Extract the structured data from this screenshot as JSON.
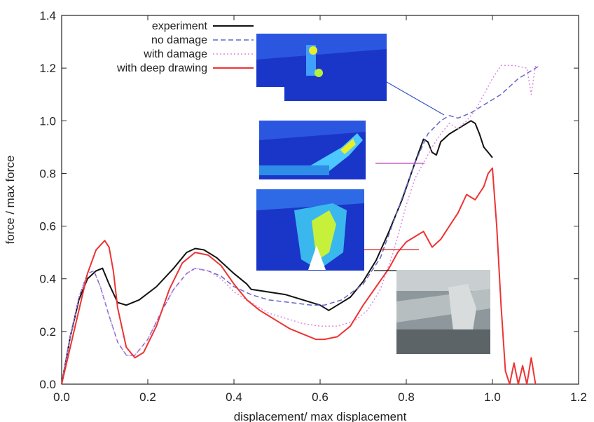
{
  "chart_data": {
    "type": "line",
    "title": "",
    "xlabel": "displacement/ max displacement",
    "ylabel": "force / max force",
    "xlim": [
      0.0,
      1.2
    ],
    "ylim": [
      0.0,
      1.4
    ],
    "xticks": [
      "0.0",
      "0.2",
      "0.4",
      "0.6",
      "0.8",
      "1.0",
      "1.2"
    ],
    "yticks": [
      "0.0",
      "0.2",
      "0.4",
      "0.6",
      "0.8",
      "1.0",
      "1.2",
      "1.4"
    ],
    "grid": false,
    "legend_position": "top-left",
    "series": [
      {
        "name": "experiment",
        "color": "#111111",
        "dash": "solid",
        "points": [
          [
            0.0,
            0.0
          ],
          [
            0.02,
            0.18
          ],
          [
            0.04,
            0.32
          ],
          [
            0.06,
            0.4
          ],
          [
            0.08,
            0.43
          ],
          [
            0.095,
            0.44
          ],
          [
            0.11,
            0.38
          ],
          [
            0.13,
            0.31
          ],
          [
            0.15,
            0.3
          ],
          [
            0.18,
            0.32
          ],
          [
            0.22,
            0.37
          ],
          [
            0.26,
            0.44
          ],
          [
            0.29,
            0.5
          ],
          [
            0.31,
            0.515
          ],
          [
            0.33,
            0.51
          ],
          [
            0.36,
            0.48
          ],
          [
            0.4,
            0.42
          ],
          [
            0.43,
            0.38
          ],
          [
            0.44,
            0.36
          ],
          [
            0.48,
            0.35
          ],
          [
            0.52,
            0.34
          ],
          [
            0.56,
            0.32
          ],
          [
            0.6,
            0.3
          ],
          [
            0.62,
            0.28
          ],
          [
            0.64,
            0.3
          ],
          [
            0.67,
            0.33
          ],
          [
            0.7,
            0.39
          ],
          [
            0.73,
            0.47
          ],
          [
            0.76,
            0.58
          ],
          [
            0.79,
            0.7
          ],
          [
            0.82,
            0.84
          ],
          [
            0.84,
            0.93
          ],
          [
            0.85,
            0.92
          ],
          [
            0.86,
            0.88
          ],
          [
            0.87,
            0.87
          ],
          [
            0.88,
            0.92
          ],
          [
            0.9,
            0.95
          ],
          [
            0.92,
            0.97
          ],
          [
            0.95,
            1.0
          ],
          [
            0.96,
            0.99
          ],
          [
            0.97,
            0.95
          ],
          [
            0.98,
            0.9
          ],
          [
            0.99,
            0.88
          ],
          [
            1.0,
            0.86
          ]
        ]
      },
      {
        "name": "no damage",
        "color": "#6666cc",
        "dash": "dashed",
        "points": [
          [
            0.0,
            0.0
          ],
          [
            0.02,
            0.18
          ],
          [
            0.04,
            0.33
          ],
          [
            0.06,
            0.42
          ],
          [
            0.075,
            0.43
          ],
          [
            0.09,
            0.37
          ],
          [
            0.11,
            0.26
          ],
          [
            0.13,
            0.16
          ],
          [
            0.15,
            0.11
          ],
          [
            0.17,
            0.11
          ],
          [
            0.2,
            0.17
          ],
          [
            0.23,
            0.27
          ],
          [
            0.26,
            0.36
          ],
          [
            0.29,
            0.42
          ],
          [
            0.31,
            0.44
          ],
          [
            0.34,
            0.43
          ],
          [
            0.37,
            0.41
          ],
          [
            0.4,
            0.37
          ],
          [
            0.44,
            0.34
          ],
          [
            0.48,
            0.32
          ],
          [
            0.53,
            0.31
          ],
          [
            0.58,
            0.3
          ],
          [
            0.61,
            0.3
          ],
          [
            0.65,
            0.32
          ],
          [
            0.7,
            0.38
          ],
          [
            0.74,
            0.48
          ],
          [
            0.78,
            0.66
          ],
          [
            0.82,
            0.84
          ],
          [
            0.85,
            0.95
          ],
          [
            0.88,
            1.0
          ],
          [
            0.9,
            1.02
          ],
          [
            0.92,
            1.01
          ],
          [
            0.95,
            1.03
          ],
          [
            0.98,
            1.06
          ],
          [
            1.02,
            1.1
          ],
          [
            1.06,
            1.16
          ],
          [
            1.11,
            1.21
          ]
        ]
      },
      {
        "name": "with damage",
        "color": "#dd88dd",
        "dash": "dotted",
        "points": [
          [
            0.0,
            0.0
          ],
          [
            0.02,
            0.18
          ],
          [
            0.04,
            0.33
          ],
          [
            0.06,
            0.42
          ],
          [
            0.075,
            0.43
          ],
          [
            0.09,
            0.37
          ],
          [
            0.11,
            0.26
          ],
          [
            0.13,
            0.16
          ],
          [
            0.15,
            0.11
          ],
          [
            0.17,
            0.11
          ],
          [
            0.2,
            0.17
          ],
          [
            0.23,
            0.27
          ],
          [
            0.26,
            0.36
          ],
          [
            0.29,
            0.42
          ],
          [
            0.31,
            0.44
          ],
          [
            0.34,
            0.43
          ],
          [
            0.37,
            0.4
          ],
          [
            0.4,
            0.35
          ],
          [
            0.44,
            0.31
          ],
          [
            0.48,
            0.27
          ],
          [
            0.52,
            0.25
          ],
          [
            0.56,
            0.23
          ],
          [
            0.6,
            0.22
          ],
          [
            0.64,
            0.22
          ],
          [
            0.68,
            0.24
          ],
          [
            0.71,
            0.28
          ],
          [
            0.74,
            0.36
          ],
          [
            0.77,
            0.5
          ],
          [
            0.8,
            0.68
          ],
          [
            0.82,
            0.78
          ],
          [
            0.84,
            0.84
          ],
          [
            0.86,
            0.9
          ],
          [
            0.88,
            0.95
          ],
          [
            0.9,
            0.99
          ],
          [
            0.92,
            0.97
          ],
          [
            0.94,
            1.0
          ],
          [
            0.96,
            1.04
          ],
          [
            0.98,
            1.1
          ],
          [
            1.0,
            1.16
          ],
          [
            1.02,
            1.21
          ],
          [
            1.05,
            1.21
          ],
          [
            1.08,
            1.2
          ],
          [
            1.09,
            1.1
          ],
          [
            1.1,
            1.21
          ],
          [
            1.11,
            1.2
          ]
        ]
      },
      {
        "name": "with deep drawing",
        "color": "#ee3333",
        "dash": "solid",
        "points": [
          [
            0.0,
            0.0
          ],
          [
            0.02,
            0.14
          ],
          [
            0.04,
            0.28
          ],
          [
            0.06,
            0.42
          ],
          [
            0.08,
            0.51
          ],
          [
            0.1,
            0.545
          ],
          [
            0.11,
            0.52
          ],
          [
            0.12,
            0.43
          ],
          [
            0.13,
            0.29
          ],
          [
            0.15,
            0.14
          ],
          [
            0.17,
            0.1
          ],
          [
            0.19,
            0.12
          ],
          [
            0.22,
            0.22
          ],
          [
            0.25,
            0.36
          ],
          [
            0.28,
            0.46
          ],
          [
            0.31,
            0.5
          ],
          [
            0.34,
            0.49
          ],
          [
            0.37,
            0.45
          ],
          [
            0.4,
            0.38
          ],
          [
            0.43,
            0.32
          ],
          [
            0.46,
            0.28
          ],
          [
            0.5,
            0.24
          ],
          [
            0.53,
            0.21
          ],
          [
            0.56,
            0.19
          ],
          [
            0.59,
            0.17
          ],
          [
            0.61,
            0.17
          ],
          [
            0.64,
            0.18
          ],
          [
            0.67,
            0.22
          ],
          [
            0.7,
            0.3
          ],
          [
            0.73,
            0.37
          ],
          [
            0.76,
            0.44
          ],
          [
            0.78,
            0.5
          ],
          [
            0.8,
            0.54
          ],
          [
            0.82,
            0.56
          ],
          [
            0.84,
            0.58
          ],
          [
            0.86,
            0.52
          ],
          [
            0.88,
            0.55
          ],
          [
            0.9,
            0.6
          ],
          [
            0.92,
            0.65
          ],
          [
            0.94,
            0.72
          ],
          [
            0.96,
            0.7
          ],
          [
            0.98,
            0.75
          ],
          [
            0.99,
            0.8
          ],
          [
            1.0,
            0.82
          ],
          [
            1.01,
            0.6
          ],
          [
            1.02,
            0.3
          ],
          [
            1.03,
            0.05
          ],
          [
            1.04,
            0.0
          ],
          [
            1.05,
            0.08
          ],
          [
            1.06,
            0.0
          ],
          [
            1.07,
            0.07
          ],
          [
            1.08,
            0.0
          ],
          [
            1.09,
            0.1
          ],
          [
            1.1,
            0.0
          ]
        ]
      }
    ]
  }
}
